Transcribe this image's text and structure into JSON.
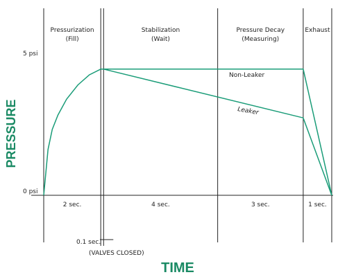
{
  "chart_data": {
    "type": "line",
    "title": "",
    "xlabel": "TIME",
    "ylabel": "PRESSURE",
    "colors": {
      "line": "#1a9c78",
      "axis_title": "#1a8a64",
      "grid": "#222222"
    },
    "yticks": [
      {
        "value": 0,
        "label": "0 psi"
      },
      {
        "value": 5,
        "label": "5 psi"
      }
    ],
    "phases": [
      {
        "name_line1": "Pressurization",
        "name_line2": "(Fill)",
        "duration": "2 sec.",
        "start": 0,
        "end": 2
      },
      {
        "name_line1": "Stabilization",
        "name_line2": "(Wait)",
        "duration": "4 sec.",
        "start": 2.1,
        "end": 6.1
      },
      {
        "name_line1": "Pressure Decay",
        "name_line2": "(Measuring)",
        "duration": "3 sec.",
        "start": 6.1,
        "end": 9.1
      },
      {
        "name_line1": "Exhaust",
        "name_line2": "",
        "duration": "1 sec.",
        "start": 9.1,
        "end": 10.1
      }
    ],
    "valve_note": {
      "duration": "0.1 sec.",
      "label": "(VALVES CLOSED)",
      "start": 2,
      "end": 2.1
    },
    "series": [
      {
        "name": "Non-Leaker",
        "points": [
          [
            2.1,
            4.4
          ],
          [
            9.1,
            4.4
          ],
          [
            10.1,
            0
          ]
        ]
      },
      {
        "name": "Leaker",
        "points": [
          [
            2.1,
            4.4
          ],
          [
            9.1,
            2.7
          ],
          [
            10.1,
            0
          ]
        ]
      }
    ],
    "fill_curve": {
      "points": [
        [
          0,
          0
        ],
        [
          0.15,
          1.6
        ],
        [
          0.3,
          2.3
        ],
        [
          0.5,
          2.8
        ],
        [
          0.8,
          3.35
        ],
        [
          1.2,
          3.85
        ],
        [
          1.6,
          4.2
        ],
        [
          2.0,
          4.4
        ]
      ]
    },
    "xlim": [
      0,
      10.1
    ],
    "ylim": [
      0,
      5
    ]
  }
}
